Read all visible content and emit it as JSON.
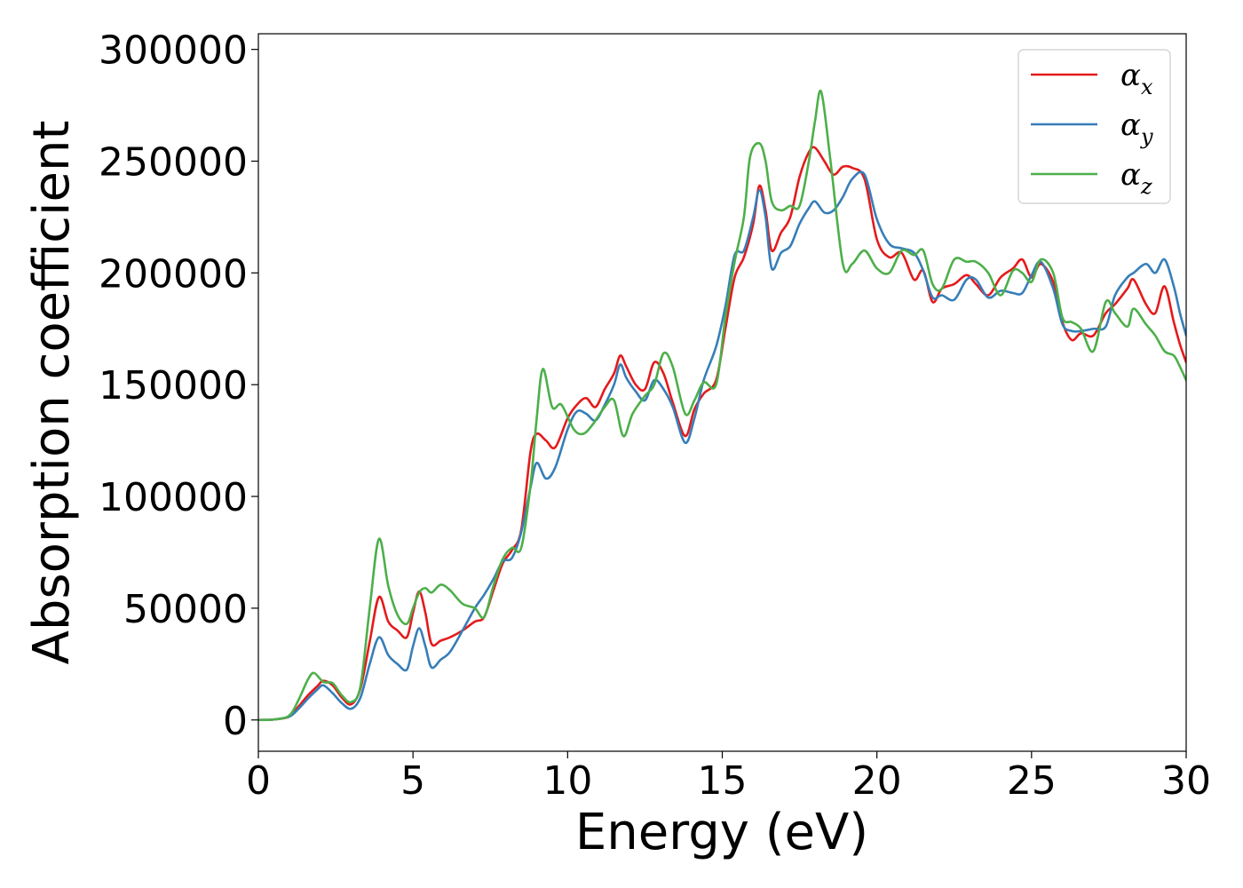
{
  "chart_data": {
    "type": "line",
    "title": "",
    "xlabel": "Energy (eV)",
    "ylabel": "Absorption coefficient",
    "xlim": [
      0,
      30
    ],
    "ylim": [
      -14000,
      307000
    ],
    "xticks": [
      0,
      5,
      10,
      15,
      20,
      25,
      30
    ],
    "xtick_labels": [
      "0",
      "5",
      "10",
      "15",
      "20",
      "25",
      "30"
    ],
    "yticks": [
      0,
      50000,
      100000,
      150000,
      200000,
      250000,
      300000
    ],
    "ytick_labels": [
      "0",
      "50000",
      "100000",
      "150000",
      "200000",
      "250000",
      "300000"
    ],
    "grid": false,
    "legend_position": "top-right",
    "series": [
      {
        "name": "α_x",
        "legend_base": "α",
        "legend_sub": "x",
        "color": "#e41a1c",
        "points": [
          [
            0,
            0
          ],
          [
            0.5,
            200
          ],
          [
            1.0,
            1500
          ],
          [
            1.3,
            6000
          ],
          [
            1.6,
            11000
          ],
          [
            1.9,
            15000
          ],
          [
            2.1,
            17500
          ],
          [
            2.4,
            15500
          ],
          [
            2.7,
            10000
          ],
          [
            3.0,
            7000
          ],
          [
            3.3,
            14000
          ],
          [
            3.6,
            35000
          ],
          [
            3.9,
            55000
          ],
          [
            4.2,
            44000
          ],
          [
            4.5,
            40000
          ],
          [
            4.8,
            37000
          ],
          [
            5.0,
            48000
          ],
          [
            5.2,
            57500
          ],
          [
            5.4,
            48000
          ],
          [
            5.6,
            34000
          ],
          [
            5.9,
            35500
          ],
          [
            6.2,
            37000
          ],
          [
            6.6,
            40000
          ],
          [
            7.0,
            44000
          ],
          [
            7.3,
            46000
          ],
          [
            7.6,
            58000
          ],
          [
            7.9,
            70000
          ],
          [
            8.2,
            76000
          ],
          [
            8.5,
            85000
          ],
          [
            8.8,
            120000
          ],
          [
            9.0,
            128000
          ],
          [
            9.3,
            125000
          ],
          [
            9.6,
            122000
          ],
          [
            10.0,
            135000
          ],
          [
            10.3,
            141000
          ],
          [
            10.6,
            144000
          ],
          [
            10.9,
            140000
          ],
          [
            11.2,
            148000
          ],
          [
            11.5,
            155000
          ],
          [
            11.7,
            163000
          ],
          [
            11.9,
            158000
          ],
          [
            12.2,
            150000
          ],
          [
            12.5,
            148000
          ],
          [
            12.8,
            160000
          ],
          [
            13.1,
            155000
          ],
          [
            13.4,
            142000
          ],
          [
            13.8,
            127000
          ],
          [
            14.1,
            139000
          ],
          [
            14.4,
            146000
          ],
          [
            14.8,
            152000
          ],
          [
            15.1,
            175000
          ],
          [
            15.4,
            198000
          ],
          [
            15.7,
            207000
          ],
          [
            16.0,
            222000
          ],
          [
            16.2,
            239000
          ],
          [
            16.4,
            228000
          ],
          [
            16.6,
            210000
          ],
          [
            16.9,
            218000
          ],
          [
            17.2,
            225000
          ],
          [
            17.5,
            243000
          ],
          [
            17.8,
            254000
          ],
          [
            18.0,
            256000
          ],
          [
            18.3,
            250000
          ],
          [
            18.6,
            244000
          ],
          [
            18.9,
            247500
          ],
          [
            19.2,
            247000
          ],
          [
            19.6,
            242000
          ],
          [
            20.0,
            215000
          ],
          [
            20.4,
            207000
          ],
          [
            20.8,
            209000
          ],
          [
            21.2,
            197000
          ],
          [
            21.5,
            201000
          ],
          [
            21.8,
            187000
          ],
          [
            22.1,
            193000
          ],
          [
            22.5,
            195000
          ],
          [
            22.9,
            199000
          ],
          [
            23.2,
            195000
          ],
          [
            23.6,
            190000
          ],
          [
            24.0,
            198000
          ],
          [
            24.4,
            202000
          ],
          [
            24.7,
            206000
          ],
          [
            25.0,
            198000
          ],
          [
            25.3,
            204000
          ],
          [
            25.7,
            196000
          ],
          [
            26.0,
            178000
          ],
          [
            26.3,
            170000
          ],
          [
            26.6,
            173000
          ],
          [
            27.0,
            172000
          ],
          [
            27.4,
            182000
          ],
          [
            27.7,
            186000
          ],
          [
            28.1,
            193000
          ],
          [
            28.3,
            197000
          ],
          [
            28.7,
            186000
          ],
          [
            29.0,
            182000
          ],
          [
            29.3,
            194000
          ],
          [
            29.6,
            178000
          ],
          [
            29.8,
            168000
          ],
          [
            30.0,
            160000
          ]
        ]
      },
      {
        "name": "α_y",
        "legend_base": "α",
        "legend_sub": "y",
        "color": "#377eb8",
        "points": [
          [
            0,
            0
          ],
          [
            0.5,
            200
          ],
          [
            1.0,
            1500
          ],
          [
            1.3,
            5000
          ],
          [
            1.6,
            9500
          ],
          [
            1.9,
            13500
          ],
          [
            2.1,
            15500
          ],
          [
            2.4,
            12000
          ],
          [
            2.7,
            7500
          ],
          [
            3.0,
            5000
          ],
          [
            3.3,
            10000
          ],
          [
            3.6,
            25000
          ],
          [
            3.9,
            37000
          ],
          [
            4.2,
            29000
          ],
          [
            4.5,
            25000
          ],
          [
            4.8,
            22500
          ],
          [
            5.0,
            33000
          ],
          [
            5.2,
            41000
          ],
          [
            5.4,
            33000
          ],
          [
            5.6,
            23500
          ],
          [
            5.9,
            27000
          ],
          [
            6.2,
            30500
          ],
          [
            6.6,
            40000
          ],
          [
            7.0,
            50000
          ],
          [
            7.3,
            56000
          ],
          [
            7.6,
            63000
          ],
          [
            7.9,
            71000
          ],
          [
            8.2,
            72500
          ],
          [
            8.5,
            84000
          ],
          [
            8.8,
            104000
          ],
          [
            9.0,
            115000
          ],
          [
            9.3,
            108000
          ],
          [
            9.6,
            113000
          ],
          [
            10.0,
            130000
          ],
          [
            10.3,
            138000
          ],
          [
            10.6,
            137000
          ],
          [
            10.9,
            134000
          ],
          [
            11.2,
            141000
          ],
          [
            11.5,
            150000
          ],
          [
            11.7,
            159000
          ],
          [
            11.9,
            153000
          ],
          [
            12.2,
            147000
          ],
          [
            12.5,
            143000
          ],
          [
            12.8,
            152000
          ],
          [
            13.1,
            148000
          ],
          [
            13.4,
            140000
          ],
          [
            13.8,
            124000
          ],
          [
            14.1,
            135000
          ],
          [
            14.4,
            152000
          ],
          [
            14.8,
            167000
          ],
          [
            15.1,
            185000
          ],
          [
            15.4,
            208000
          ],
          [
            15.7,
            210000
          ],
          [
            16.0,
            225000
          ],
          [
            16.2,
            237000
          ],
          [
            16.4,
            225000
          ],
          [
            16.6,
            202000
          ],
          [
            16.9,
            209000
          ],
          [
            17.2,
            212000
          ],
          [
            17.5,
            222000
          ],
          [
            17.8,
            229000
          ],
          [
            18.0,
            232000
          ],
          [
            18.3,
            227000
          ],
          [
            18.6,
            228000
          ],
          [
            18.9,
            234000
          ],
          [
            19.2,
            242000
          ],
          [
            19.6,
            244000
          ],
          [
            20.0,
            224000
          ],
          [
            20.4,
            213000
          ],
          [
            20.8,
            211000
          ],
          [
            21.2,
            209000
          ],
          [
            21.5,
            201000
          ],
          [
            21.8,
            189000
          ],
          [
            22.1,
            190000
          ],
          [
            22.5,
            188000
          ],
          [
            22.9,
            197000
          ],
          [
            23.2,
            197000
          ],
          [
            23.6,
            189000
          ],
          [
            24.0,
            192000
          ],
          [
            24.4,
            191000
          ],
          [
            24.7,
            191000
          ],
          [
            25.0,
            199000
          ],
          [
            25.3,
            205000
          ],
          [
            25.7,
            193000
          ],
          [
            26.0,
            177000
          ],
          [
            26.3,
            174000
          ],
          [
            26.6,
            174000
          ],
          [
            27.0,
            175000
          ],
          [
            27.4,
            176000
          ],
          [
            27.7,
            190000
          ],
          [
            28.1,
            198000
          ],
          [
            28.3,
            200000
          ],
          [
            28.7,
            204000
          ],
          [
            29.0,
            200000
          ],
          [
            29.3,
            206000
          ],
          [
            29.6,
            194000
          ],
          [
            29.8,
            182000
          ],
          [
            30.0,
            172000
          ]
        ]
      },
      {
        "name": "α_z",
        "legend_base": "α",
        "legend_sub": "z",
        "color": "#4daf4a",
        "points": [
          [
            0,
            0
          ],
          [
            0.5,
            200
          ],
          [
            1.0,
            2000
          ],
          [
            1.3,
            9000
          ],
          [
            1.6,
            18000
          ],
          [
            1.8,
            21000
          ],
          [
            2.1,
            17000
          ],
          [
            2.4,
            16500
          ],
          [
            2.7,
            11000
          ],
          [
            3.0,
            8000
          ],
          [
            3.3,
            15000
          ],
          [
            3.6,
            50000
          ],
          [
            3.9,
            81000
          ],
          [
            4.2,
            60000
          ],
          [
            4.5,
            47000
          ],
          [
            4.8,
            43000
          ],
          [
            5.0,
            50000
          ],
          [
            5.2,
            57000
          ],
          [
            5.4,
            59000
          ],
          [
            5.6,
            57000
          ],
          [
            5.9,
            60500
          ],
          [
            6.2,
            58000
          ],
          [
            6.6,
            52000
          ],
          [
            7.0,
            50000
          ],
          [
            7.3,
            46000
          ],
          [
            7.6,
            60000
          ],
          [
            7.9,
            72000
          ],
          [
            8.2,
            77000
          ],
          [
            8.5,
            77000
          ],
          [
            8.8,
            105000
          ],
          [
            9.0,
            135000
          ],
          [
            9.2,
            157000
          ],
          [
            9.5,
            140000
          ],
          [
            9.8,
            141000
          ],
          [
            10.2,
            130000
          ],
          [
            10.5,
            128000
          ],
          [
            10.8,
            132000
          ],
          [
            11.2,
            140000
          ],
          [
            11.5,
            143000
          ],
          [
            11.8,
            127000
          ],
          [
            12.1,
            137000
          ],
          [
            12.5,
            145000
          ],
          [
            12.8,
            150000
          ],
          [
            13.1,
            164000
          ],
          [
            13.4,
            158000
          ],
          [
            13.8,
            137000
          ],
          [
            14.1,
            143000
          ],
          [
            14.4,
            151000
          ],
          [
            14.8,
            150000
          ],
          [
            15.1,
            180000
          ],
          [
            15.4,
            205000
          ],
          [
            15.7,
            225000
          ],
          [
            15.9,
            252000
          ],
          [
            16.2,
            258000
          ],
          [
            16.4,
            250000
          ],
          [
            16.6,
            232000
          ],
          [
            16.9,
            228000
          ],
          [
            17.2,
            230000
          ],
          [
            17.5,
            230000
          ],
          [
            17.8,
            250000
          ],
          [
            18.0,
            268000
          ],
          [
            18.2,
            281000
          ],
          [
            18.5,
            250000
          ],
          [
            18.9,
            204000
          ],
          [
            19.2,
            204000
          ],
          [
            19.6,
            210000
          ],
          [
            20.0,
            202000
          ],
          [
            20.4,
            200000
          ],
          [
            20.8,
            210000
          ],
          [
            21.2,
            208000
          ],
          [
            21.5,
            210000
          ],
          [
            21.8,
            195000
          ],
          [
            22.1,
            193000
          ],
          [
            22.5,
            206000
          ],
          [
            22.9,
            205000
          ],
          [
            23.2,
            205000
          ],
          [
            23.6,
            200000
          ],
          [
            24.0,
            190000
          ],
          [
            24.4,
            201000
          ],
          [
            24.7,
            200000
          ],
          [
            25.0,
            196000
          ],
          [
            25.3,
            206000
          ],
          [
            25.7,
            200000
          ],
          [
            26.0,
            180000
          ],
          [
            26.3,
            178000
          ],
          [
            26.6,
            175000
          ],
          [
            27.0,
            165000
          ],
          [
            27.4,
            187000
          ],
          [
            27.7,
            182000
          ],
          [
            28.1,
            176000
          ],
          [
            28.3,
            184000
          ],
          [
            28.7,
            177000
          ],
          [
            29.0,
            172000
          ],
          [
            29.3,
            165000
          ],
          [
            29.6,
            163000
          ],
          [
            29.8,
            158000
          ],
          [
            30.0,
            152000
          ]
        ]
      }
    ]
  }
}
